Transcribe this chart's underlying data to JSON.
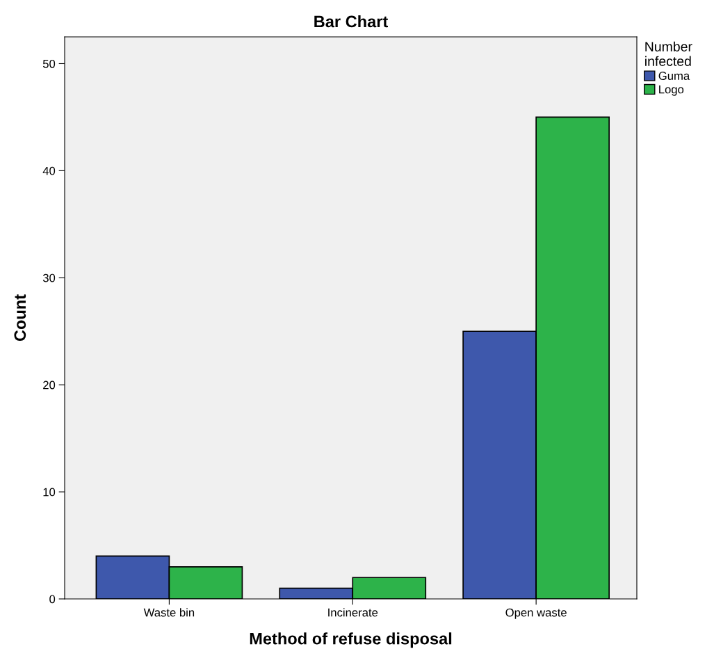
{
  "chart_data": {
    "type": "bar",
    "title": "Bar Chart",
    "xlabel": "Method of refuse disposal",
    "ylabel": "Count",
    "categories": [
      "Waste bin",
      "Incinerate",
      "Open waste"
    ],
    "series": [
      {
        "name": "Guma",
        "color": "#3e58ac",
        "values": [
          4,
          1,
          25
        ]
      },
      {
        "name": "Logo",
        "color": "#2db34a",
        "values": [
          3,
          2,
          45
        ]
      }
    ],
    "legend_title": "Number\ninfected",
    "legend": "top right",
    "ylim": [
      0,
      52.5
    ],
    "yticks": [
      0,
      10,
      20,
      30,
      40,
      50
    ],
    "grid": false
  }
}
